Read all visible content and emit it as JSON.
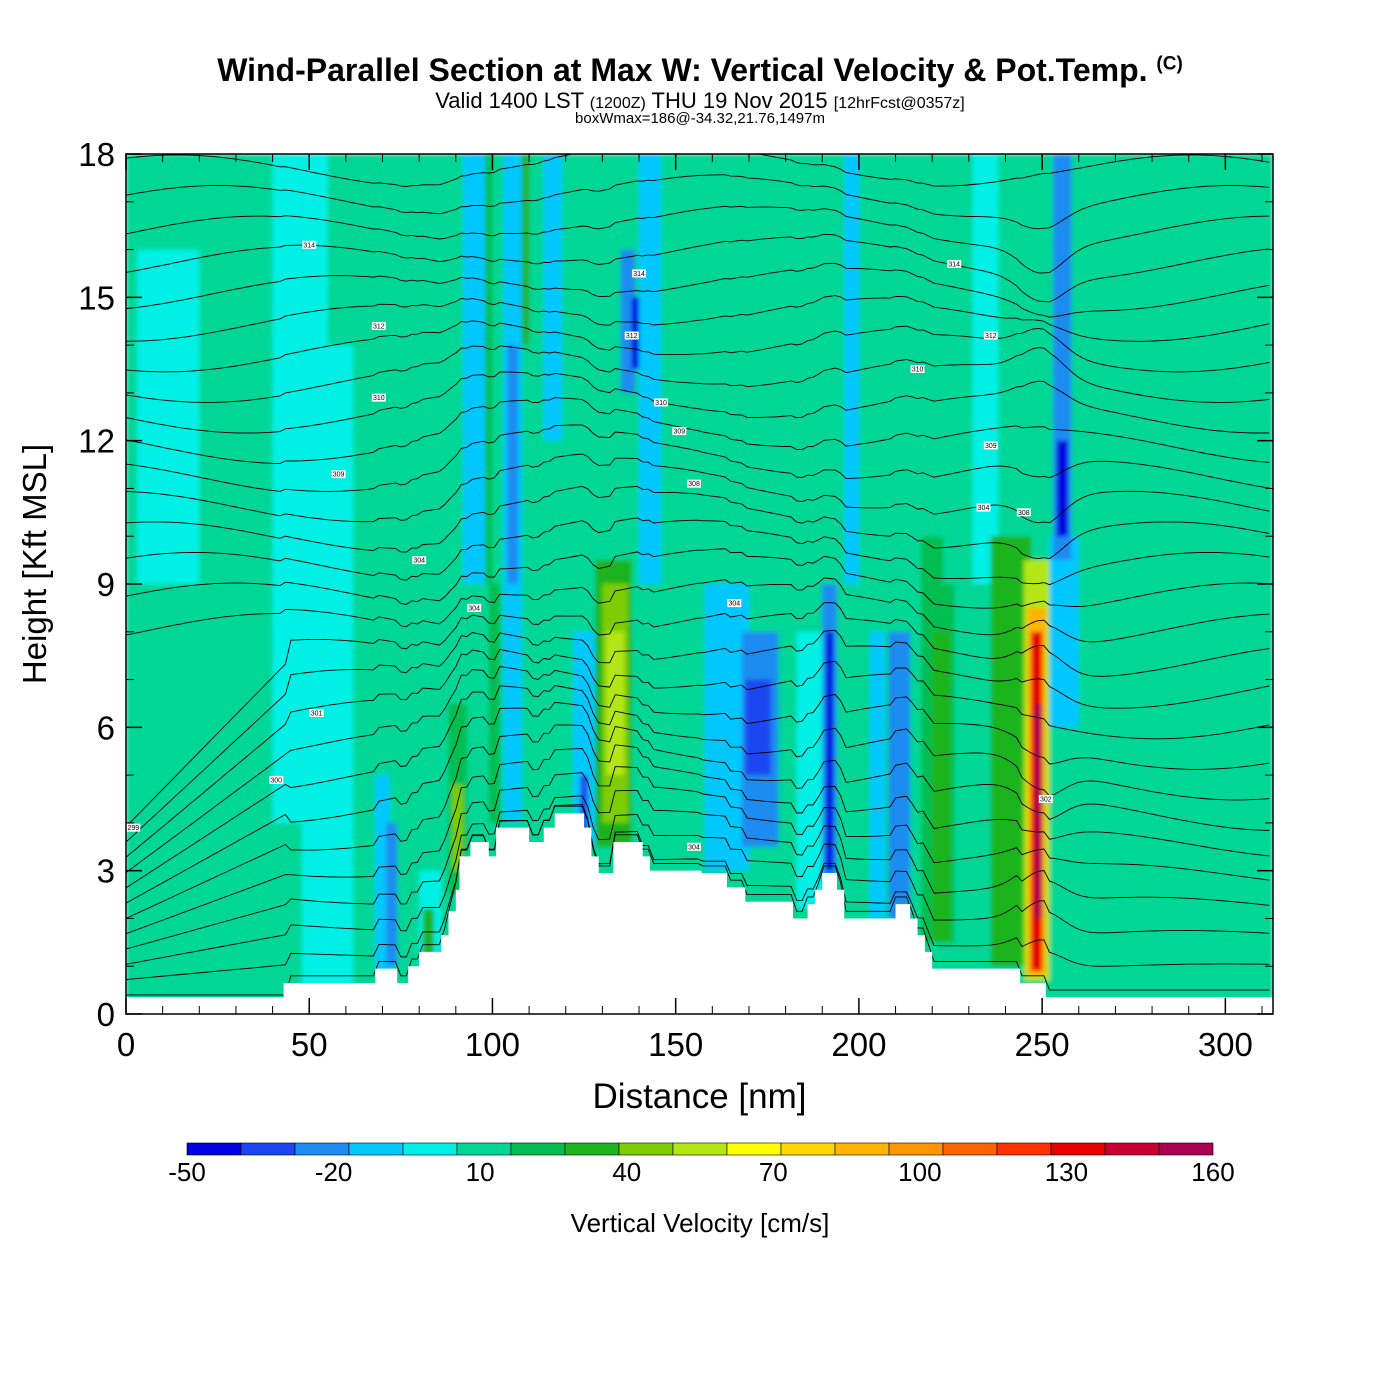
{
  "title": {
    "main": "Wind-Parallel Section at Max W: Vertical Velocity & Pot.Temp.",
    "copyright": "(C)",
    "valid_prefix": "Valid 1400 LST",
    "utc": "(1200Z)",
    "valid_date": "THU 19 Nov 2015",
    "forecast": "[12hrFcst@0357z]",
    "boxwmax": "boxWmax=186@-34.32,21.76,1497m"
  },
  "chart_data": {
    "type": "heatmap",
    "title": "Wind-Parallel Section at Max W: Vertical Velocity & Pot.Temp.",
    "xlabel": "Distance [nm]",
    "ylabel": "Height [Kft MSL]",
    "xlim": [
      0,
      313
    ],
    "ylim": [
      0,
      18
    ],
    "xticks": [
      0,
      50,
      100,
      150,
      200,
      250,
      300
    ],
    "yticks": [
      0,
      3,
      6,
      9,
      12,
      15,
      18
    ],
    "colorbar": {
      "label": "Vertical Velocity [cm/s]",
      "levels": [
        -50,
        -40,
        -30,
        -20,
        -10,
        0,
        10,
        20,
        30,
        40,
        50,
        60,
        70,
        80,
        90,
        100,
        110,
        120,
        130,
        140,
        150,
        160
      ],
      "tick_labels": [
        "-50",
        "-20",
        "10",
        "40",
        "70",
        "100",
        "130",
        "160"
      ],
      "tick_values": [
        -50,
        -20,
        10,
        40,
        70,
        100,
        130,
        160
      ],
      "colors": [
        "#0000e0",
        "#1e46f0",
        "#1e8cf0",
        "#00c8ff",
        "#00f0e6",
        "#00d796",
        "#00be50",
        "#1eb41e",
        "#7dcd00",
        "#b4e614",
        "#ffff00",
        "#ffd700",
        "#ffb400",
        "#ff9600",
        "#ff6400",
        "#ff3200",
        "#e60000",
        "#c80032",
        "#aa0050"
      ]
    },
    "terrain_kft": [
      [
        0,
        0.35
      ],
      [
        43,
        0.35
      ],
      [
        43,
        0.65
      ],
      [
        68,
        0.65
      ],
      [
        68,
        0.95
      ],
      [
        74,
        0.95
      ],
      [
        74,
        0.65
      ],
      [
        77,
        0.65
      ],
      [
        77,
        1.0
      ],
      [
        80,
        1.0
      ],
      [
        80,
        1.3
      ],
      [
        86,
        1.3
      ],
      [
        86,
        1.65
      ],
      [
        88,
        1.65
      ],
      [
        88,
        2.15
      ],
      [
        90,
        2.15
      ],
      [
        90,
        2.6
      ],
      [
        91,
        2.6
      ],
      [
        91,
        3.3
      ],
      [
        94,
        3.3
      ],
      [
        94,
        3.6
      ],
      [
        99,
        3.6
      ],
      [
        99,
        3.3
      ],
      [
        101,
        3.3
      ],
      [
        101,
        3.9
      ],
      [
        110,
        3.9
      ],
      [
        110,
        3.6
      ],
      [
        114,
        3.6
      ],
      [
        114,
        3.9
      ],
      [
        117,
        3.9
      ],
      [
        117,
        4.2
      ],
      [
        125,
        4.2
      ],
      [
        125,
        3.9
      ],
      [
        127,
        3.9
      ],
      [
        127,
        3.3
      ],
      [
        129,
        3.3
      ],
      [
        129,
        2.95
      ],
      [
        133,
        2.95
      ],
      [
        133,
        3.6
      ],
      [
        141,
        3.6
      ],
      [
        141,
        3.3
      ],
      [
        143,
        3.3
      ],
      [
        143,
        3.0
      ],
      [
        157,
        3.0
      ],
      [
        157,
        2.95
      ],
      [
        164,
        2.95
      ],
      [
        164,
        2.65
      ],
      [
        169,
        2.65
      ],
      [
        169,
        2.35
      ],
      [
        182,
        2.35
      ],
      [
        182,
        2.0
      ],
      [
        186,
        2.0
      ],
      [
        186,
        2.3
      ],
      [
        188,
        2.3
      ],
      [
        188,
        2.6
      ],
      [
        190,
        2.6
      ],
      [
        190,
        2.95
      ],
      [
        194,
        2.95
      ],
      [
        194,
        2.6
      ],
      [
        196,
        2.6
      ],
      [
        196,
        2.0
      ],
      [
        210,
        2.0
      ],
      [
        210,
        2.3
      ],
      [
        214,
        2.3
      ],
      [
        214,
        2.0
      ],
      [
        216,
        2.0
      ],
      [
        216,
        1.65
      ],
      [
        218,
        1.65
      ],
      [
        218,
        1.3
      ],
      [
        220,
        1.3
      ],
      [
        220,
        0.95
      ],
      [
        244,
        0.95
      ],
      [
        244,
        0.65
      ],
      [
        251,
        0.65
      ],
      [
        251,
        0.35
      ],
      [
        313,
        0.35
      ]
    ],
    "velocity_columns": [
      {
        "x": [
          0,
          18
        ],
        "value": 5
      },
      {
        "x": [
          3,
          20
        ],
        "y": [
          9,
          16
        ],
        "value": -5
      },
      {
        "x": [
          40,
          48
        ],
        "y": [
          4,
          18
        ],
        "value": -5
      },
      {
        "x": [
          48,
          55
        ],
        "y": [
          0,
          18
        ],
        "value": -5
      },
      {
        "x": [
          55,
          62
        ],
        "y": [
          0,
          14
        ],
        "value": -5
      },
      {
        "x": [
          70,
          84
        ],
        "y": [
          9,
          18
        ],
        "value": 5
      },
      {
        "x": [
          68,
          72
        ],
        "y": [
          0.9,
          5
        ],
        "value": -15
      },
      {
        "x": [
          71,
          74
        ],
        "y": [
          1,
          4
        ],
        "value": -25
      },
      {
        "x": [
          80,
          86
        ],
        "y": [
          1,
          3
        ],
        "value": -5
      },
      {
        "x": [
          81,
          84
        ],
        "y": [
          1.2,
          2.2
        ],
        "value": 25
      },
      {
        "x": [
          88,
          93
        ],
        "y": [
          2.5,
          6.5
        ],
        "value": 15
      },
      {
        "x": [
          89,
          92
        ],
        "y": [
          3,
          4.8
        ],
        "value": 35
      },
      {
        "x": [
          92,
          99
        ],
        "y": [
          9,
          18
        ],
        "value": -15
      },
      {
        "x": [
          98,
          100
        ],
        "y": [
          9,
          18
        ],
        "value": 15
      },
      {
        "x": [
          99,
          102
        ],
        "y": [
          4,
          9
        ],
        "value": 10
      },
      {
        "x": [
          103,
          108
        ],
        "y": [
          4,
          18
        ],
        "value": -20
      },
      {
        "x": [
          104,
          107
        ],
        "y": [
          9,
          14
        ],
        "value": -30
      },
      {
        "x": [
          108,
          110
        ],
        "y": [
          14,
          18
        ],
        "value": 20
      },
      {
        "x": [
          114,
          119
        ],
        "y": [
          12,
          18
        ],
        "value": -15
      },
      {
        "x": [
          119,
          123
        ],
        "y": [
          4,
          18
        ],
        "value": 5
      },
      {
        "x": [
          122,
          128
        ],
        "y": [
          3.5,
          8
        ],
        "value": -20
      },
      {
        "x": [
          124,
          126
        ],
        "y": [
          3.6,
          5
        ],
        "value": -40
      },
      {
        "x": [
          128,
          138
        ],
        "y": [
          3.5,
          9.5
        ],
        "value": 25
      },
      {
        "x": [
          130,
          137
        ],
        "y": [
          4,
          9
        ],
        "value": 35
      },
      {
        "x": [
          131,
          136
        ],
        "y": [
          5,
          8
        ],
        "value": 45
      },
      {
        "x": [
          135,
          139
        ],
        "y": [
          13,
          16
        ],
        "value": -30
      },
      {
        "x": [
          138,
          141
        ],
        "y": [
          13.5,
          15
        ],
        "value": -45
      },
      {
        "x": [
          140,
          146
        ],
        "y": [
          9,
          18
        ],
        "value": -15
      },
      {
        "x": [
          158,
          170
        ],
        "y": [
          3,
          9
        ],
        "value": -15
      },
      {
        "x": [
          168,
          178
        ],
        "y": [
          3.5,
          8
        ],
        "value": -25
      },
      {
        "x": [
          169,
          176
        ],
        "y": [
          5,
          7
        ],
        "value": -35
      },
      {
        "x": [
          183,
          190
        ],
        "y": [
          2.2,
          8
        ],
        "value": -10
      },
      {
        "x": [
          190,
          194
        ],
        "y": [
          2.8,
          9
        ],
        "value": -30
      },
      {
        "x": [
          191,
          193
        ],
        "y": [
          3,
          8
        ],
        "value": -45
      },
      {
        "x": [
          196,
          200
        ],
        "y": [
          9,
          18
        ],
        "value": -15
      },
      {
        "x": [
          203,
          207
        ],
        "y": [
          2,
          8
        ],
        "value": -15
      },
      {
        "x": [
          208,
          214
        ],
        "y": [
          2,
          8
        ],
        "value": -25
      },
      {
        "x": [
          217,
          226
        ],
        "y": [
          1.5,
          10
        ],
        "value": 15
      },
      {
        "x": [
          220,
          225
        ],
        "y": [
          1.5,
          8
        ],
        "value": 25
      },
      {
        "x": [
          223,
          231
        ],
        "y": [
          9,
          18
        ],
        "value": 5
      },
      {
        "x": [
          231,
          238
        ],
        "y": [
          9,
          18
        ],
        "value": -10
      },
      {
        "x": [
          236,
          247
        ],
        "y": [
          1,
          10
        ],
        "value": 20
      },
      {
        "x": [
          238,
          246
        ],
        "y": [
          1,
          9
        ],
        "value": 25
      },
      {
        "x": [
          245,
          252
        ],
        "y": [
          0.7,
          9.5
        ],
        "value": 45
      },
      {
        "x": [
          246,
          251
        ],
        "y": [
          0.8,
          8.5
        ],
        "value": 75
      },
      {
        "x": [
          247,
          250
        ],
        "y": [
          0.9,
          8
        ],
        "value": 115
      },
      {
        "x": [
          248,
          250
        ],
        "y": [
          2,
          6.5
        ],
        "value": 140
      },
      {
        "x": [
          252,
          260
        ],
        "y": [
          6,
          10
        ],
        "value": -15
      },
      {
        "x": [
          253,
          258
        ],
        "y": [
          9.5,
          18
        ],
        "value": -30
      },
      {
        "x": [
          254,
          257
        ],
        "y": [
          10,
          12
        ],
        "value": -45
      },
      {
        "x": [
          260,
          290
        ],
        "y": [
          0.4,
          9
        ],
        "value": 5
      },
      {
        "x": [
          288,
          313
        ],
        "y": [
          0.4,
          18
        ],
        "value": 5
      }
    ],
    "theta_contours_K": [
      290,
      292,
      294,
      296,
      298,
      300,
      302,
      304,
      306,
      308,
      310,
      312,
      314,
      316,
      318,
      320,
      322,
      324,
      326,
      328,
      330,
      332,
      334,
      336,
      338,
      340,
      342,
      344
    ],
    "contour_labels": [
      {
        "x": 2,
        "y": 3.9,
        "text": "299"
      },
      {
        "x": 41,
        "y": 4.9,
        "text": "300"
      },
      {
        "x": 52,
        "y": 6.3,
        "text": "301"
      },
      {
        "x": 80,
        "y": 9.5,
        "text": "304"
      },
      {
        "x": 95,
        "y": 8.5,
        "text": "304"
      },
      {
        "x": 58,
        "y": 11.3,
        "text": "309"
      },
      {
        "x": 69,
        "y": 12.9,
        "text": "310"
      },
      {
        "x": 69,
        "y": 14.4,
        "text": "312"
      },
      {
        "x": 50,
        "y": 16.1,
        "text": "314"
      },
      {
        "x": 140,
        "y": 15.5,
        "text": "314"
      },
      {
        "x": 138,
        "y": 14.2,
        "text": "312"
      },
      {
        "x": 146,
        "y": 12.8,
        "text": "310"
      },
      {
        "x": 151,
        "y": 12.2,
        "text": "309"
      },
      {
        "x": 155,
        "y": 11.1,
        "text": "308"
      },
      {
        "x": 166,
        "y": 8.6,
        "text": "304"
      },
      {
        "x": 155,
        "y": 3.5,
        "text": "304"
      },
      {
        "x": 216,
        "y": 13.5,
        "text": "310"
      },
      {
        "x": 226,
        "y": 15.7,
        "text": "314"
      },
      {
        "x": 236,
        "y": 14.2,
        "text": "312"
      },
      {
        "x": 236,
        "y": 11.9,
        "text": "309"
      },
      {
        "x": 234,
        "y": 10.6,
        "text": "304"
      },
      {
        "x": 245,
        "y": 10.5,
        "text": "308"
      },
      {
        "x": 251,
        "y": 4.5,
        "text": "302"
      }
    ]
  }
}
